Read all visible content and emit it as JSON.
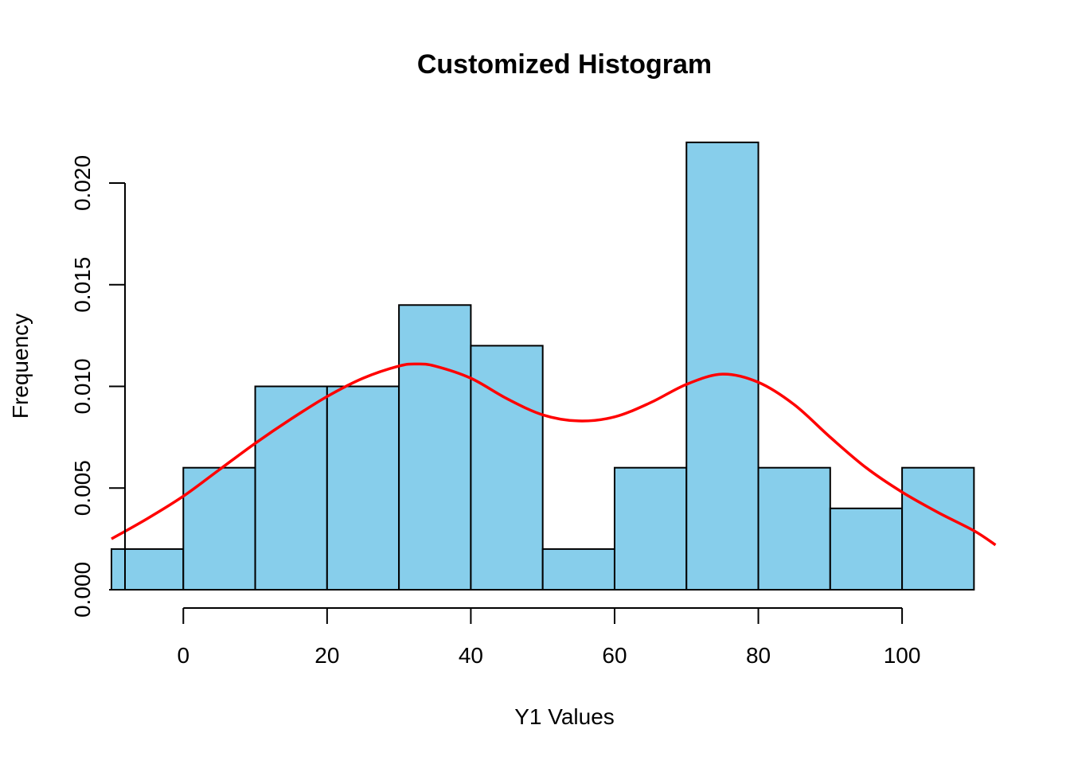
{
  "chart_data": {
    "type": "bar",
    "title": "Customized Histogram",
    "xlabel": "Y1 Values",
    "ylabel": "Frequency",
    "bins": [
      {
        "start": -10,
        "end": 0,
        "value": 0.002
      },
      {
        "start": 0,
        "end": 10,
        "value": 0.006
      },
      {
        "start": 10,
        "end": 20,
        "value": 0.01
      },
      {
        "start": 20,
        "end": 30,
        "value": 0.01
      },
      {
        "start": 30,
        "end": 40,
        "value": 0.014
      },
      {
        "start": 40,
        "end": 50,
        "value": 0.012
      },
      {
        "start": 50,
        "end": 60,
        "value": 0.002
      },
      {
        "start": 60,
        "end": 70,
        "value": 0.006
      },
      {
        "start": 70,
        "end": 80,
        "value": 0.022
      },
      {
        "start": 80,
        "end": 90,
        "value": 0.006
      },
      {
        "start": 90,
        "end": 100,
        "value": 0.004
      },
      {
        "start": 100,
        "end": 110,
        "value": 0.006
      }
    ],
    "xlim": [
      -10,
      115
    ],
    "ylim": [
      0,
      0.022
    ],
    "x_ticks": [
      0,
      20,
      40,
      60,
      80,
      100
    ],
    "x_tick_labels": [
      "0",
      "20",
      "40",
      "60",
      "80",
      "100"
    ],
    "y_ticks": [
      0,
      0.005,
      0.01,
      0.015,
      0.02
    ],
    "y_tick_labels": [
      "0.000",
      "0.005",
      "0.010",
      "0.015",
      "0.020"
    ],
    "grid": false,
    "colors": {
      "bar_fill": "#87ceeb",
      "bar_stroke": "#000000",
      "density_line": "#ff0000"
    },
    "density_curve": {
      "x": [
        -10,
        -5,
        0,
        5,
        10,
        15,
        20,
        25,
        30,
        32.5,
        35,
        40,
        45,
        50,
        55,
        60,
        65,
        70,
        75,
        80,
        85,
        90,
        95,
        100,
        105,
        110,
        113
      ],
      "y": [
        0.0025,
        0.0035,
        0.0046,
        0.0059,
        0.0072,
        0.0084,
        0.0095,
        0.0104,
        0.011,
        0.0111,
        0.011,
        0.0104,
        0.0094,
        0.0086,
        0.0083,
        0.0085,
        0.0092,
        0.0101,
        0.0106,
        0.0102,
        0.0091,
        0.0075,
        0.006,
        0.0048,
        0.0038,
        0.0029,
        0.0022
      ]
    }
  }
}
